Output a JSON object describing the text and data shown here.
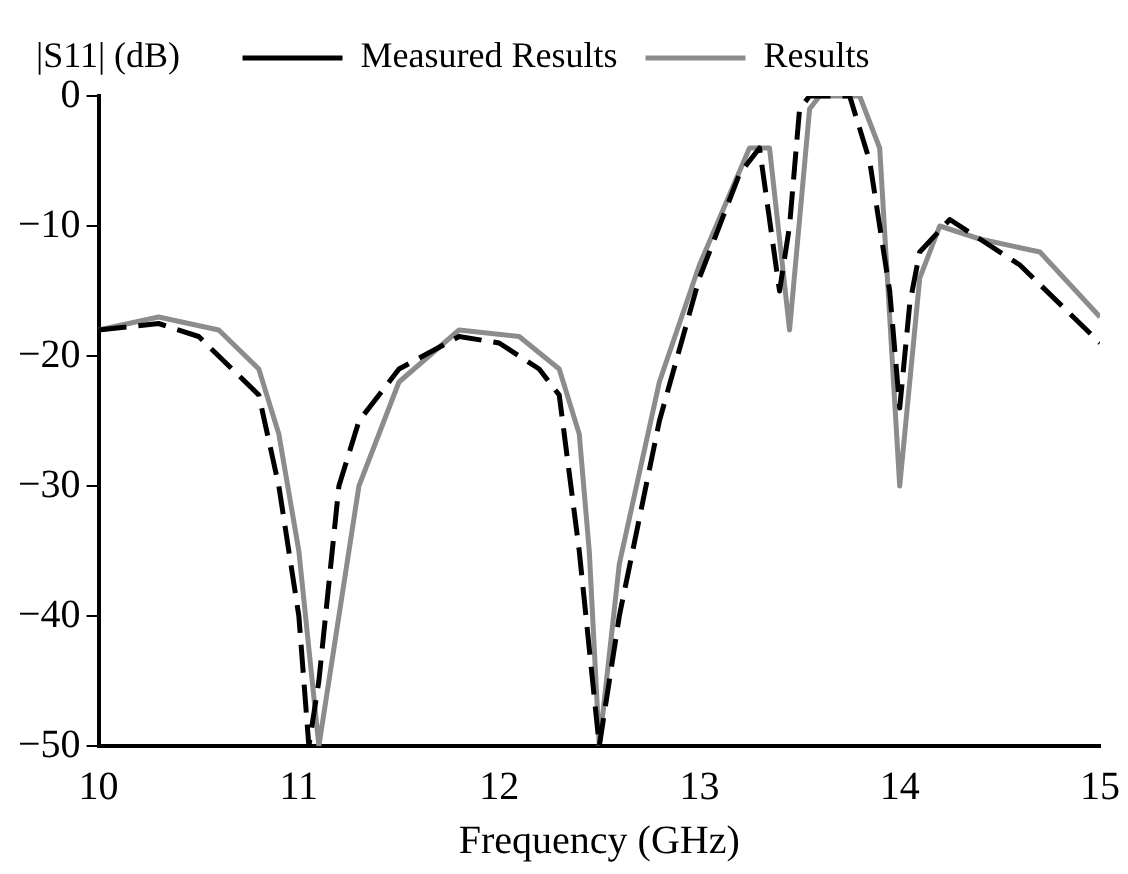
{
  "chart_data": {
    "type": "line",
    "xlabel": "Frequency (GHz)",
    "ylabel": "|S11| (dB)",
    "xlim": [
      10,
      15
    ],
    "xticks": [
      10,
      11,
      12,
      13,
      14,
      15
    ],
    "ylim": [
      -50,
      0
    ],
    "yticks": [
      -50,
      -40,
      -30,
      -20,
      -10,
      0
    ],
    "grid": false,
    "legend": "top",
    "marker": "none",
    "series": [
      {
        "name": "Measured Results",
        "color": "#000000",
        "line_style": "dashed",
        "x": [
          10.0,
          10.3,
          10.5,
          10.7,
          10.8,
          10.9,
          11.0,
          11.05,
          11.1,
          11.2,
          11.3,
          11.5,
          11.8,
          12.0,
          12.2,
          12.3,
          12.4,
          12.5,
          12.6,
          12.8,
          13.0,
          13.2,
          13.3,
          13.4,
          13.45,
          13.5,
          13.55,
          13.75,
          13.85,
          13.95,
          14.0,
          14.05,
          14.1,
          14.25,
          14.4,
          14.6,
          15.0
        ],
        "values": [
          -18,
          -17.5,
          -18.5,
          -21.5,
          -23,
          -30,
          -40,
          -50,
          -45,
          -30,
          -25,
          -21,
          -18.5,
          -19,
          -21,
          -23,
          -35,
          -50,
          -40,
          -25,
          -14,
          -6,
          -4,
          -15,
          -10,
          -1,
          0,
          0,
          -5,
          -15,
          -24,
          -16,
          -12,
          -9.5,
          -11,
          -13,
          -19
        ]
      },
      {
        "name": "Results",
        "color": "#8c8c8c",
        "line_style": "solid",
        "x": [
          10.0,
          10.3,
          10.6,
          10.8,
          10.9,
          11.0,
          11.1,
          11.2,
          11.3,
          11.5,
          11.8,
          12.1,
          12.3,
          12.4,
          12.45,
          12.5,
          12.6,
          12.8,
          13.0,
          13.25,
          13.35,
          13.45,
          13.55,
          13.6,
          13.8,
          13.9,
          14.0,
          14.1,
          14.2,
          14.4,
          14.7,
          15.0
        ],
        "values": [
          -18,
          -17,
          -18,
          -21,
          -26,
          -35,
          -50,
          -40,
          -30,
          -22,
          -18,
          -18.5,
          -21,
          -26,
          -35,
          -50,
          -36,
          -22,
          -13,
          -4,
          -4,
          -18,
          -1,
          0,
          0,
          -4,
          -30,
          -14,
          -10,
          -11,
          -12,
          -17
        ]
      }
    ]
  }
}
